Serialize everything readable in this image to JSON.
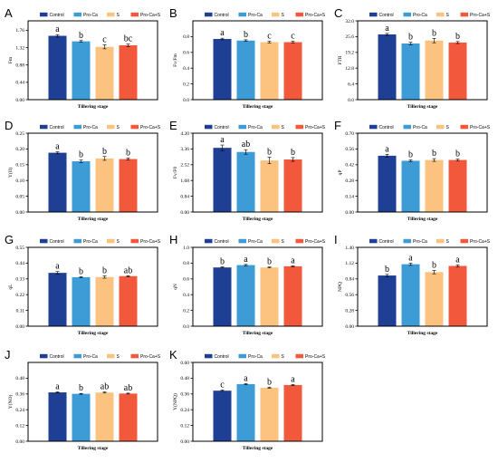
{
  "legend": {
    "entries": [
      "Control",
      "Pro-Ca",
      "S",
      "Pro-Ca+S"
    ],
    "colors": [
      "#1f3f94",
      "#3d9bd6",
      "#fbc37f",
      "#f2583c"
    ]
  },
  "chart_data": [
    {
      "type": "bar",
      "panel": "A",
      "ylabel": "Fm",
      "xlabel": "Tillering stage",
      "categories": [
        "Control",
        "Pro-Ca",
        "S",
        "Pro-Ca+S"
      ],
      "values": [
        1.62,
        1.48,
        1.34,
        1.38
      ],
      "errors": [
        0.03,
        0.02,
        0.05,
        0.03
      ],
      "letters": [
        "a",
        "b",
        "c",
        "bc"
      ],
      "ylim": [
        0,
        2.0
      ],
      "yticks": [
        "0.00",
        "0.44",
        "0.88",
        "1.32",
        "1.76"
      ],
      "ytick_values": [
        0,
        0.44,
        0.88,
        1.32,
        1.76
      ]
    },
    {
      "type": "bar",
      "panel": "B",
      "ylabel": "Fv/Fm",
      "xlabel": "Tillering stage",
      "categories": [
        "Control",
        "Pro-Ca",
        "S",
        "Pro-Ca+S"
      ],
      "values": [
        0.77,
        0.75,
        0.73,
        0.73
      ],
      "errors": [
        0.01,
        0.01,
        0.01,
        0.01
      ],
      "letters": [
        "a",
        "b",
        "c",
        "c"
      ],
      "ylim": [
        0,
        1.0
      ],
      "yticks": [
        "0.0",
        "0.2",
        "0.4",
        "0.6",
        "0.8"
      ],
      "ytick_values": [
        0,
        0.2,
        0.4,
        0.6,
        0.8
      ]
    },
    {
      "type": "bar",
      "panel": "C",
      "ylabel": "FTR",
      "xlabel": "Tillering stage",
      "categories": [
        "Control",
        "Pro-Ca",
        "S",
        "Pro-Ca+S"
      ],
      "values": [
        26.5,
        22.8,
        24.0,
        23.2
      ],
      "errors": [
        0.4,
        0.5,
        0.9,
        0.4
      ],
      "letters": [
        "a",
        "b",
        "b",
        "b"
      ],
      "ylim": [
        0,
        32.0
      ],
      "yticks": [
        "0.0",
        "6.4",
        "12.8",
        "19.2",
        "25.6",
        "32.0"
      ],
      "ytick_values": [
        0,
        6.4,
        12.8,
        19.2,
        25.6,
        32.0
      ]
    },
    {
      "type": "bar",
      "panel": "D",
      "ylabel": "Y(II)",
      "xlabel": "Tillering stage",
      "categories": [
        "Control",
        "Pro-Ca",
        "S",
        "Pro-Ca+S"
      ],
      "values": [
        0.188,
        0.161,
        0.17,
        0.168
      ],
      "errors": [
        0.003,
        0.004,
        0.006,
        0.003
      ],
      "letters": [
        "a",
        "b",
        "b",
        "b"
      ],
      "ylim": [
        0,
        0.25
      ],
      "yticks": [
        "0.00",
        "0.05",
        "0.10",
        "0.15",
        "0.20",
        "0.25"
      ],
      "ytick_values": [
        0,
        0.05,
        0.1,
        0.15,
        0.2,
        0.25
      ]
    },
    {
      "type": "bar",
      "panel": "E",
      "ylabel": "Fv/F0",
      "xlabel": "Tillering stage",
      "categories": [
        "Control",
        "Pro-Ca",
        "S",
        "Pro-Ca+S"
      ],
      "values": [
        3.42,
        3.2,
        2.75,
        2.8
      ],
      "errors": [
        0.15,
        0.12,
        0.17,
        0.1
      ],
      "letters": [
        "a",
        "ab",
        "b",
        "b"
      ],
      "ylim": [
        0,
        4.2
      ],
      "yticks": [
        "0.00",
        "0.84",
        "1.68",
        "2.52",
        "3.36",
        "4.20"
      ],
      "ytick_values": [
        0,
        0.84,
        1.68,
        2.52,
        3.36,
        4.2
      ]
    },
    {
      "type": "bar",
      "panel": "F",
      "ylabel": "qP",
      "xlabel": "Tillering stage",
      "categories": [
        "Control",
        "Pro-Ca",
        "S",
        "Pro-Ca+S"
      ],
      "values": [
        0.5,
        0.455,
        0.462,
        0.462
      ],
      "errors": [
        0.012,
        0.008,
        0.012,
        0.008
      ],
      "letters": [
        "a",
        "b",
        "b",
        "b"
      ],
      "ylim": [
        0,
        0.7
      ],
      "yticks": [
        "0.00",
        "0.14",
        "0.28",
        "0.42",
        "0.56",
        "0.70"
      ],
      "ytick_values": [
        0,
        0.14,
        0.28,
        0.42,
        0.56,
        0.7
      ]
    },
    {
      "type": "bar",
      "panel": "G",
      "ylabel": "qL",
      "xlabel": "Tillering stage",
      "categories": [
        "Control",
        "Pro-Ca",
        "S",
        "Pro-Ca+S"
      ],
      "values": [
        0.372,
        0.342,
        0.343,
        0.349
      ],
      "errors": [
        0.009,
        0.004,
        0.008,
        0.003
      ],
      "letters": [
        "a",
        "b",
        "b",
        "ab"
      ],
      "ylim": [
        0,
        0.55
      ],
      "yticks": [
        "0.00",
        "0.11",
        "0.22",
        "0.33",
        "0.44",
        "0.55"
      ],
      "ytick_values": [
        0,
        0.11,
        0.22,
        0.33,
        0.44,
        0.55
      ]
    },
    {
      "type": "bar",
      "panel": "H",
      "ylabel": "qN",
      "xlabel": "Tillering stage",
      "categories": [
        "Control",
        "Pro-Ca",
        "S",
        "Pro-Ca+S"
      ],
      "values": [
        0.745,
        0.775,
        0.745,
        0.76
      ],
      "errors": [
        0.006,
        0.008,
        0.006,
        0.006
      ],
      "letters": [
        "b",
        "a",
        "b",
        "a"
      ],
      "ylim": [
        0,
        1.0
      ],
      "yticks": [
        "0.0",
        "0.2",
        "0.4",
        "0.6",
        "0.8",
        "1.0"
      ],
      "ytick_values": [
        0,
        0.2,
        0.4,
        0.6,
        0.8,
        1.0
      ]
    },
    {
      "type": "bar",
      "panel": "I",
      "ylabel": "NPQ",
      "xlabel": "Tillering stage",
      "categories": [
        "Control",
        "Pro-Ca",
        "S",
        "Pro-Ca+S"
      ],
      "values": [
        0.9,
        1.1,
        0.96,
        1.07
      ],
      "errors": [
        0.02,
        0.02,
        0.03,
        0.02
      ],
      "letters": [
        "b",
        "a",
        "b",
        "a"
      ],
      "ylim": [
        0,
        1.4
      ],
      "yticks": [
        "0.00",
        "0.28",
        "0.56",
        "0.84",
        "1.12",
        "1.40"
      ],
      "ytick_values": [
        0,
        0.28,
        0.56,
        0.84,
        1.12,
        1.4
      ]
    },
    {
      "type": "bar",
      "panel": "J",
      "ylabel": "Y(NO)",
      "xlabel": "Tillering stage",
      "categories": [
        "Control",
        "Pro-Ca",
        "S",
        "Pro-Ca+S"
      ],
      "values": [
        0.372,
        0.361,
        0.371,
        0.363
      ],
      "errors": [
        0.004,
        0.003,
        0.004,
        0.003
      ],
      "letters": [
        "a",
        "b",
        "ab",
        "ab"
      ],
      "ylim": [
        0,
        0.6
      ],
      "yticks": [
        "0.00",
        "0.12",
        "0.24",
        "0.36",
        "0.48"
      ],
      "ytick_values": [
        0,
        0.12,
        0.24,
        0.36,
        0.48
      ]
    },
    {
      "type": "bar",
      "panel": "K",
      "ylabel": "Y(NPQ)",
      "xlabel": "Tillering stage",
      "categories": [
        "Control",
        "Pro-Ca",
        "S",
        "Pro-Ca+S"
      ],
      "values": [
        0.385,
        0.435,
        0.408,
        0.428
      ],
      "errors": [
        0.005,
        0.004,
        0.004,
        0.004
      ],
      "letters": [
        "c",
        "a",
        "b",
        "a"
      ],
      "ylim": [
        0,
        0.6
      ],
      "yticks": [
        "0.00",
        "0.12",
        "0.24",
        "0.36",
        "0.48",
        "0.60"
      ],
      "ytick_values": [
        0,
        0.12,
        0.24,
        0.36,
        0.48,
        0.6
      ]
    }
  ]
}
